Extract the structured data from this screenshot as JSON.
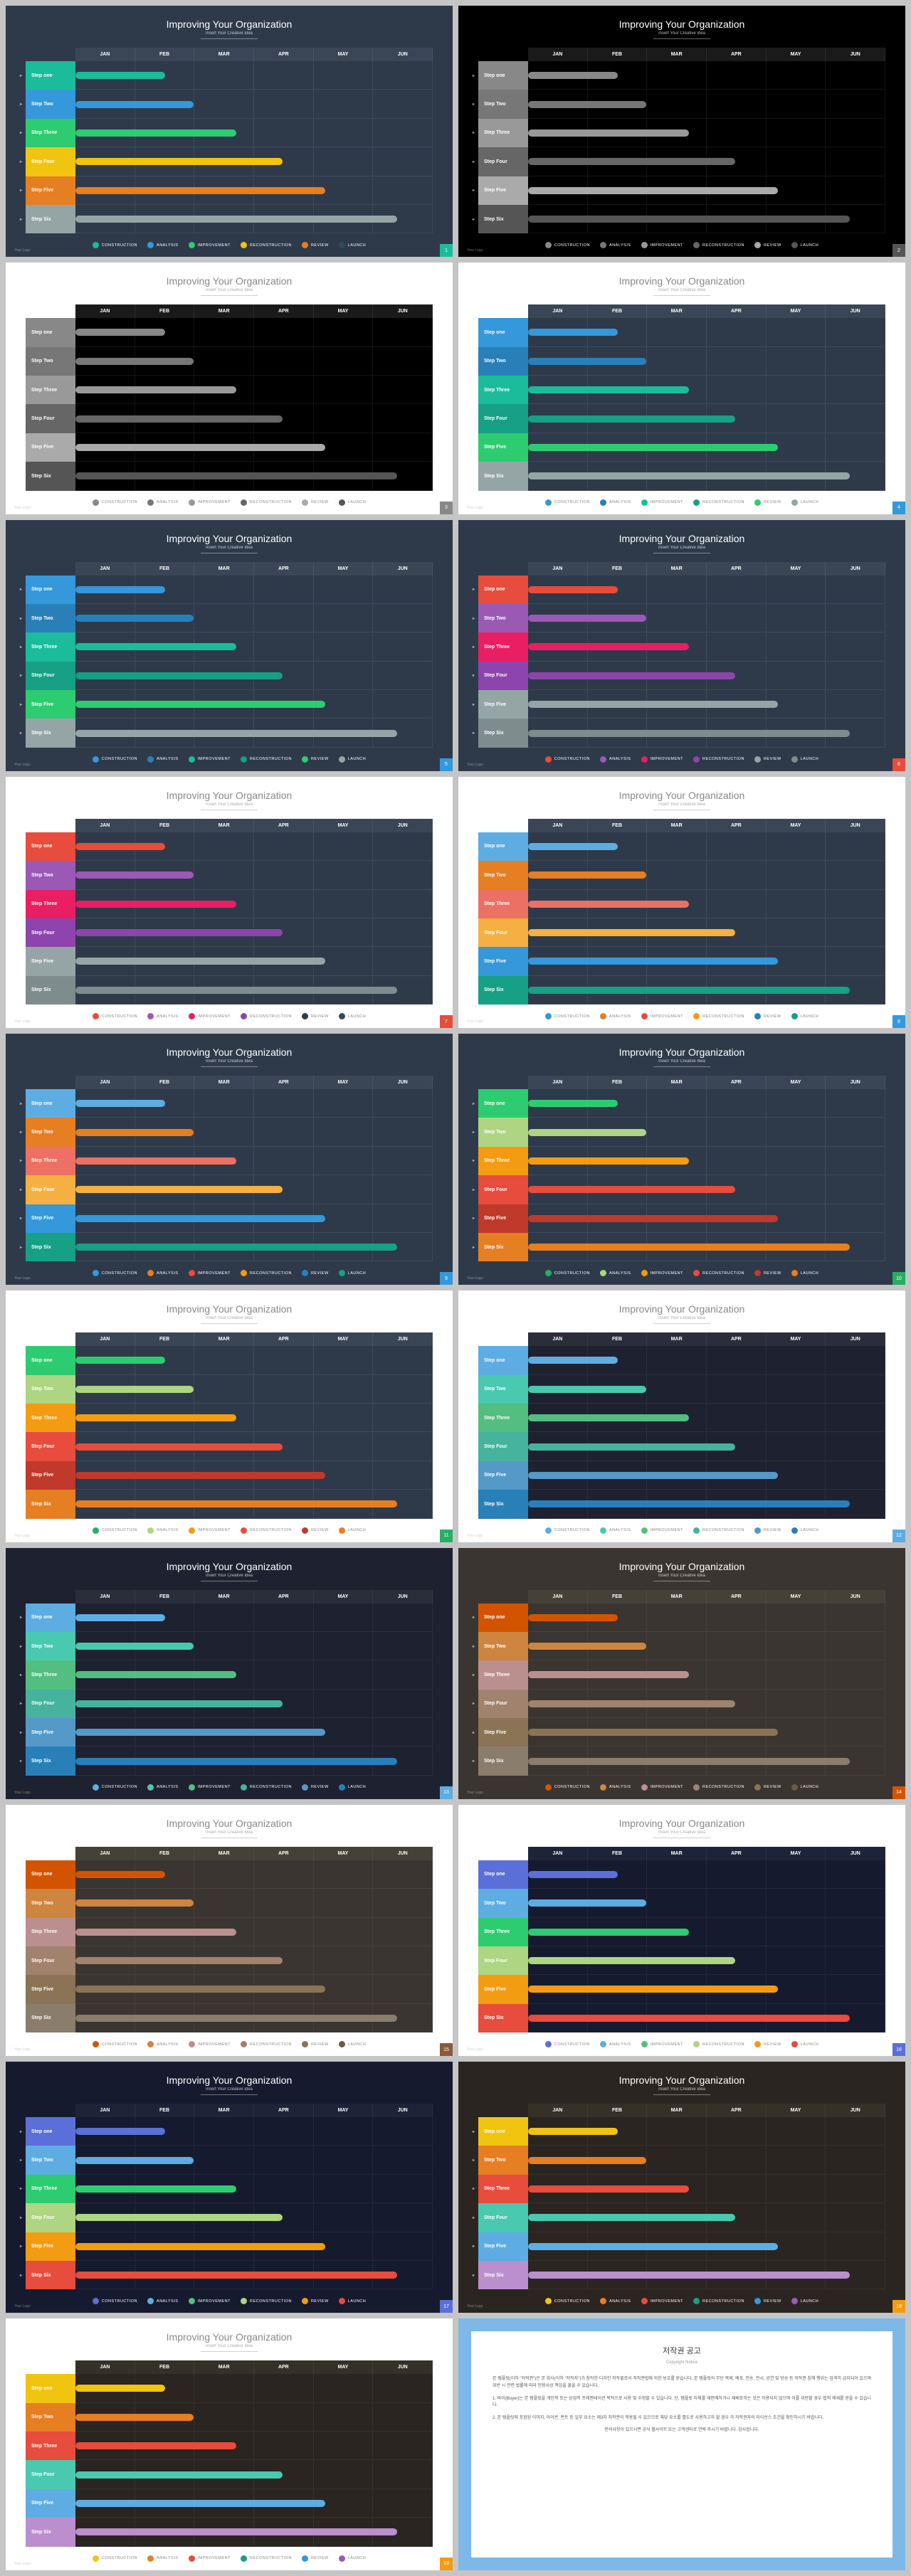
{
  "title": "Improving Your Organization",
  "subtitle": "Insert Your Creative Idea",
  "footer": "Your Logo",
  "months": [
    "JAN",
    "FEB",
    "MAR",
    "APR",
    "MAY",
    "JUN"
  ],
  "steps": [
    "Step one",
    "Step Two",
    "Step Three",
    "Step Four",
    "Step Five",
    "Step Six"
  ],
  "legend": [
    "CONSTRUCTION",
    "ANALYSIS",
    "IMPROVEMENT",
    "RECONSTRUCTION",
    "REVIEW",
    "LAUNCH"
  ],
  "barWidths": [
    25,
    33,
    45,
    58,
    70,
    90
  ],
  "copyright": {
    "title": "저작권 공고",
    "sub": "Copyright Notice",
    "p1": "본 템플릿(이하 \"저작권\")은 본 회사(이하 \"저작자\")가 창작한 디자인 저작물로서 저작권법에 의한 보호를 받습니다. 본 템플릿의 무단 복제, 배포, 전송, 전시, 공연 및 방송 등 저작권 침해 행위는 엄격히 금지되어 있으며 위반 시 관련 법률에 따라 민형사상 책임을 물을 수 있습니다.",
    "p2": "1. 바이(Buyer)는 본 템플릿을 개인적 또는 상업적 프레젠테이션 목적으로 사용 및 수정할 수 있습니다. 단, 템플릿 자체를 재판매하거나 재배포하는 것은 허용되지 않으며 이를 위반할 경우 법적 제재를 받을 수 있습니다.",
    "p3": "2. 본 템플릿에 포함된 이미지, 아이콘, 폰트 등 일부 요소는 제3자 저작권이 적용될 수 있으므로 해당 요소를 별도로 사용하고자 할 경우 각 저작권자의 라이선스 조건을 확인하시기 바랍니다.",
    "p4": "문의사항이 있으시면 공식 웹사이트 또는 고객센터로 연락 주시기 바랍니다. 감사합니다."
  },
  "slides": [
    {
      "bg": "#2e3a4a",
      "titleColor": "#ffffff",
      "headerBg": "#3a4656",
      "chartBg": "#2e3a4a",
      "labelText": "#ffffff",
      "gridColor": "rgba(255,255,255,0.08)",
      "corner": "#1abc9c",
      "colors": [
        "#1abc9c",
        "#3498db",
        "#2ecc71",
        "#f1c40f",
        "#e67e22",
        "#34495e"
      ],
      "bars": [
        "#1abc9c",
        "#3498db",
        "#2ecc71",
        "#f1c40f",
        "#e67e22",
        "#95a5a6"
      ]
    },
    {
      "bg": "#000000",
      "titleColor": "#ffffff",
      "headerBg": "#1a1a1a",
      "chartBg": "#000000",
      "labelText": "#ffffff",
      "gridColor": "rgba(255,255,255,0.08)",
      "corner": "#555555",
      "colors": [
        "#888888",
        "#777777",
        "#999999",
        "#666666",
        "#aaaaaa",
        "#555555"
      ],
      "bars": [
        "#888888",
        "#777777",
        "#999999",
        "#666666",
        "#aaaaaa",
        "#555555"
      ]
    },
    {
      "bg": "#ffffff",
      "titleColor": "#888888",
      "headerBg": "#1a1a1a",
      "chartBg": "#000000",
      "labelText": "#ffffff",
      "gridColor": "rgba(255,255,255,0.08)",
      "corner": "#888888",
      "colors": [
        "#888888",
        "#777777",
        "#999999",
        "#666666",
        "#aaaaaa",
        "#555555"
      ],
      "bars": [
        "#888888",
        "#777777",
        "#999999",
        "#666666",
        "#aaaaaa",
        "#555555"
      ],
      "legendColor": "#888"
    },
    {
      "bg": "#ffffff",
      "titleColor": "#888888",
      "headerBg": "#3a4656",
      "chartBg": "#2e3a4a",
      "labelText": "#ffffff",
      "gridColor": "rgba(255,255,255,0.08)",
      "corner": "#3498db",
      "colors": [
        "#3498db",
        "#2980b9",
        "#1abc9c",
        "#16a085",
        "#2ecc71",
        "#95a5a6"
      ],
      "bars": [
        "#3498db",
        "#2980b9",
        "#1abc9c",
        "#16a085",
        "#2ecc71",
        "#95a5a6"
      ],
      "legendColor": "#888"
    },
    {
      "bg": "#2e3a4a",
      "titleColor": "#ffffff",
      "headerBg": "#3a4656",
      "chartBg": "#2e3a4a",
      "labelText": "#ffffff",
      "gridColor": "rgba(255,255,255,0.08)",
      "corner": "#3498db",
      "colors": [
        "#3498db",
        "#2980b9",
        "#1abc9c",
        "#16a085",
        "#2ecc71",
        "#95a5a6"
      ],
      "bars": [
        "#3498db",
        "#2980b9",
        "#1abc9c",
        "#16a085",
        "#2ecc71",
        "#95a5a6"
      ]
    },
    {
      "bg": "#2e3a4a",
      "titleColor": "#ffffff",
      "headerBg": "#3a4656",
      "chartBg": "#2e3a4a",
      "labelText": "#ffffff",
      "gridColor": "rgba(255,255,255,0.08)",
      "corner": "#e74c3c",
      "colors": [
        "#e74c3c",
        "#9b59b6",
        "#e91e63",
        "#8e44ad",
        "#95a5a6",
        "#7f8c8d"
      ],
      "bars": [
        "#e74c3c",
        "#9b59b6",
        "#e91e63",
        "#8e44ad",
        "#95a5a6",
        "#7f8c8d"
      ]
    },
    {
      "bg": "#ffffff",
      "titleColor": "#888888",
      "headerBg": "#3a4656",
      "chartBg": "#2e3a4a",
      "labelText": "#ffffff",
      "gridColor": "rgba(255,255,255,0.08)",
      "corner": "#e74c3c",
      "colors": [
        "#e74c3c",
        "#9b59b6",
        "#e91e63",
        "#8e44ad",
        "#2c3e50",
        "#34495e"
      ],
      "bars": [
        "#e74c3c",
        "#9b59b6",
        "#e91e63",
        "#8e44ad",
        "#95a5a6",
        "#7f8c8d"
      ],
      "legendColor": "#888"
    },
    {
      "bg": "#ffffff",
      "titleColor": "#888888",
      "headerBg": "#3a4656",
      "chartBg": "#2e3a4a",
      "labelText": "#ffffff",
      "gridColor": "rgba(255,255,255,0.08)",
      "corner": "#3498db",
      "colors": [
        "#3498db",
        "#e67e22",
        "#e74c3c",
        "#f39c12",
        "#2980b9",
        "#16a085"
      ],
      "bars": [
        "#5dade2",
        "#e67e22",
        "#ec7063",
        "#f5b041",
        "#3498db",
        "#16a085"
      ],
      "legendColor": "#888"
    },
    {
      "bg": "#2e3a4a",
      "titleColor": "#ffffff",
      "headerBg": "#3a4656",
      "chartBg": "#2e3a4a",
      "labelText": "#ffffff",
      "gridColor": "rgba(255,255,255,0.08)",
      "corner": "#3498db",
      "colors": [
        "#3498db",
        "#e67e22",
        "#e74c3c",
        "#f39c12",
        "#2980b9",
        "#16a085"
      ],
      "bars": [
        "#5dade2",
        "#e67e22",
        "#ec7063",
        "#f5b041",
        "#3498db",
        "#16a085"
      ]
    },
    {
      "bg": "#2e3a4a",
      "titleColor": "#ffffff",
      "headerBg": "#3a4656",
      "chartBg": "#2e3a4a",
      "labelText": "#ffffff",
      "gridColor": "rgba(255,255,255,0.08)",
      "corner": "#27ae60",
      "colors": [
        "#27ae60",
        "#aed581",
        "#f39c12",
        "#e74c3c",
        "#c0392b",
        "#e67e22"
      ],
      "bars": [
        "#2ecc71",
        "#aed581",
        "#f39c12",
        "#e74c3c",
        "#c0392b",
        "#e67e22"
      ]
    },
    {
      "bg": "#ffffff",
      "titleColor": "#888888",
      "headerBg": "#3a4656",
      "chartBg": "#2e3a4a",
      "labelText": "#ffffff",
      "gridColor": "rgba(255,255,255,0.08)",
      "corner": "#27ae60",
      "colors": [
        "#27ae60",
        "#aed581",
        "#f39c12",
        "#e74c3c",
        "#c0392b",
        "#e67e22"
      ],
      "bars": [
        "#2ecc71",
        "#aed581",
        "#f39c12",
        "#e74c3c",
        "#c0392b",
        "#e67e22"
      ],
      "legendColor": "#888"
    },
    {
      "bg": "#ffffff",
      "titleColor": "#888888",
      "headerBg": "#2a2d3a",
      "chartBg": "#1e2130",
      "labelText": "#ffffff",
      "gridColor": "rgba(255,255,255,0.06)",
      "corner": "#5dade2",
      "colors": [
        "#5dade2",
        "#48c9b0",
        "#52be80",
        "#45b39d",
        "#5499c7",
        "#2980b9"
      ],
      "bars": [
        "#5dade2",
        "#48c9b0",
        "#52be80",
        "#45b39d",
        "#5499c7",
        "#2980b9"
      ],
      "legendColor": "#888"
    },
    {
      "bg": "#1e2130",
      "titleColor": "#ffffff",
      "headerBg": "#2a2d3a",
      "chartBg": "#1e2130",
      "labelText": "#ffffff",
      "gridColor": "rgba(255,255,255,0.06)",
      "corner": "#5dade2",
      "colors": [
        "#5dade2",
        "#48c9b0",
        "#52be80",
        "#45b39d",
        "#5499c7",
        "#2980b9"
      ],
      "bars": [
        "#5dade2",
        "#48c9b0",
        "#52be80",
        "#45b39d",
        "#5499c7",
        "#2980b9"
      ]
    },
    {
      "bg": "#3a3530",
      "titleColor": "#ffffff",
      "headerBg": "#454038",
      "chartBg": "#3a3530",
      "labelText": "#ffffff",
      "gridColor": "rgba(255,255,255,0.06)",
      "corner": "#d35400",
      "colors": [
        "#d35400",
        "#cd853f",
        "#bc8f8f",
        "#a0826d",
        "#8b7355",
        "#6b5a45"
      ],
      "bars": [
        "#d35400",
        "#cd853f",
        "#bc8f8f",
        "#a0826d",
        "#8b7355",
        "#8b7d6b"
      ]
    },
    {
      "bg": "#ffffff",
      "titleColor": "#888888",
      "headerBg": "#454038",
      "chartBg": "#3a3530",
      "labelText": "#ffffff",
      "gridColor": "rgba(255,255,255,0.06)",
      "corner": "#8b5a3c",
      "colors": [
        "#d35400",
        "#cd853f",
        "#bc8f8f",
        "#a0826d",
        "#8b7355",
        "#6b5a45"
      ],
      "bars": [
        "#d35400",
        "#cd853f",
        "#bc8f8f",
        "#a0826d",
        "#8b7355",
        "#8b7d6b"
      ],
      "legendColor": "#888"
    },
    {
      "bg": "#ffffff",
      "titleColor": "#888888",
      "headerBg": "#1e2438",
      "chartBg": "#151a2e",
      "labelText": "#ffffff",
      "gridColor": "rgba(255,255,255,0.06)",
      "corner": "#5b6fd8",
      "colors": [
        "#5b6fd8",
        "#5dade2",
        "#52be80",
        "#aed581",
        "#f39c12",
        "#e74c3c"
      ],
      "bars": [
        "#5b6fd8",
        "#5dade2",
        "#2ecc71",
        "#aed581",
        "#f39c12",
        "#e74c3c"
      ],
      "legendColor": "#888"
    },
    {
      "bg": "#151a2e",
      "titleColor": "#ffffff",
      "headerBg": "#1e2438",
      "chartBg": "#151a2e",
      "labelText": "#ffffff",
      "gridColor": "rgba(255,255,255,0.06)",
      "corner": "#5b6fd8",
      "colors": [
        "#5b6fd8",
        "#5dade2",
        "#52be80",
        "#aed581",
        "#f39c12",
        "#e74c3c"
      ],
      "bars": [
        "#5b6fd8",
        "#5dade2",
        "#2ecc71",
        "#aed581",
        "#f39c12",
        "#e74c3c"
      ]
    },
    {
      "bg": "#2a2520",
      "titleColor": "#ffffff",
      "headerBg": "#353028",
      "chartBg": "#2a2520",
      "labelText": "#ffffff",
      "gridColor": "rgba(255,255,255,0.06)",
      "corner": "#f39c12",
      "colors": [
        "#f1c40f",
        "#e67e22",
        "#e74c3c",
        "#16a085",
        "#3498db",
        "#9b59b6"
      ],
      "bars": [
        "#f1c40f",
        "#e67e22",
        "#e74c3c",
        "#48c9b0",
        "#5dade2",
        "#bb8fce"
      ]
    },
    {
      "bg": "#ffffff",
      "titleColor": "#888888",
      "headerBg": "#353028",
      "chartBg": "#2a2520",
      "labelText": "#ffffff",
      "gridColor": "rgba(255,255,255,0.06)",
      "corner": "#f39c12",
      "colors": [
        "#f1c40f",
        "#e67e22",
        "#e74c3c",
        "#16a085",
        "#3498db",
        "#9b59b6"
      ],
      "bars": [
        "#f1c40f",
        "#e67e22",
        "#e74c3c",
        "#48c9b0",
        "#5dade2",
        "#bb8fce"
      ],
      "legendColor": "#888"
    }
  ]
}
